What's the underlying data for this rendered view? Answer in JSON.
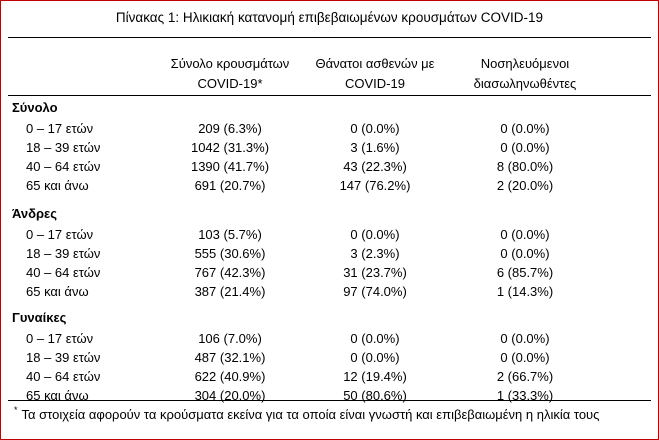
{
  "title": "Πίνακας 1: Ηλικιακή κατανομή επιβεβαιωμένων κρουσμάτων COVID-19",
  "columns": [
    {
      "line1": "Σύνολο κρουσμάτων",
      "line2": "COVID-19*"
    },
    {
      "line1": "Θάνατοι ασθενών με",
      "line2": "COVID-19"
    },
    {
      "line1": "Νοσηλευόμενοι",
      "line2": "διασωληνωθέντες"
    }
  ],
  "groups": [
    {
      "name": "Σύνολο",
      "rows": [
        {
          "label": "0 – 17 ετών",
          "cases": "209 (6.3%)",
          "deaths": "0 (0.0%)",
          "intubated": "0 (0.0%)"
        },
        {
          "label": "18 – 39 ετών",
          "cases": "1042 (31.3%)",
          "deaths": "3 (1.6%)",
          "intubated": "0 (0.0%)"
        },
        {
          "label": "40 – 64 ετών",
          "cases": "1390 (41.7%)",
          "deaths": "43 (22.3%)",
          "intubated": "8 (80.0%)"
        },
        {
          "label": "65 και άνω",
          "cases": "691 (20.7%)",
          "deaths": "147 (76.2%)",
          "intubated": "2 (20.0%)"
        }
      ]
    },
    {
      "name": "Άνδρες",
      "rows": [
        {
          "label": "0 – 17 ετών",
          "cases": "103 (5.7%)",
          "deaths": "0 (0.0%)",
          "intubated": "0 (0.0%)"
        },
        {
          "label": "18 – 39 ετών",
          "cases": "555 (30.6%)",
          "deaths": "3 (2.3%)",
          "intubated": "0 (0.0%)"
        },
        {
          "label": "40 – 64 ετών",
          "cases": "767 (42.3%)",
          "deaths": "31 (23.7%)",
          "intubated": "6 (85.7%)"
        },
        {
          "label": "65 και άνω",
          "cases": "387 (21.4%)",
          "deaths": "97 (74.0%)",
          "intubated": "1 (14.3%)"
        }
      ]
    },
    {
      "name": "Γυναίκες",
      "rows": [
        {
          "label": "0 – 17 ετών",
          "cases": "106 (7.0%)",
          "deaths": "0 (0.0%)",
          "intubated": "0 (0.0%)"
        },
        {
          "label": "18 – 39 ετών",
          "cases": "487 (32.1%)",
          "deaths": "0 (0.0%)",
          "intubated": "0 (0.0%)"
        },
        {
          "label": "40 – 64 ετών",
          "cases": "622 (40.9%)",
          "deaths": "12 (19.4%)",
          "intubated": "2 (66.7%)"
        },
        {
          "label": "65 και άνω",
          "cases": "304 (20.0%)",
          "deaths": "50 (80.6%)",
          "intubated": "1 (33.3%)"
        }
      ]
    }
  ],
  "footnote": {
    "mark": "*",
    "text": "Τα στοιχεία αφορούν τα κρούσματα εκείνα για τα οποία είναι γνωστή και επιβεβαιωμένη η ηλικία τους"
  }
}
